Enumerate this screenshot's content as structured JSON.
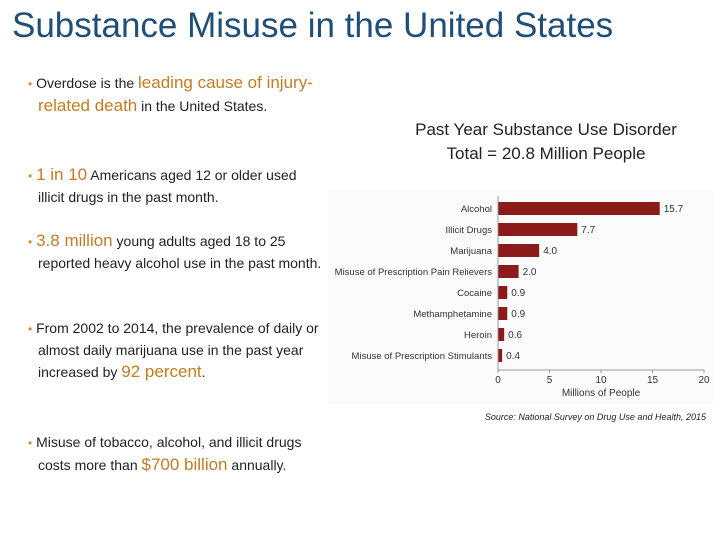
{
  "slide": {
    "title": "Substance Misuse in the United States"
  },
  "bullets": [
    {
      "pre": "Overdose is the ",
      "highlight": "leading cause of injury-related death",
      "post": " in the United States."
    },
    {
      "pre": "",
      "highlight": "1 in 10",
      "post": " Americans aged 12 or older used illicit drugs in the past month."
    },
    {
      "pre": "",
      "highlight": "3.8 million",
      "post": " young adults aged 18 to 25 reported heavy alcohol use in the past month."
    },
    {
      "pre": "From 2002 to 2014, the prevalence of daily or almost daily marijuana use in the past year increased by ",
      "highlight": "92 percent",
      "post": "."
    },
    {
      "pre": "Misuse of tobacco, alcohol, and illicit drugs costs more than ",
      "highlight": "$700 billion",
      "post": " annually."
    }
  ],
  "chart_heading": {
    "line1": "Past Year Substance Use Disorder",
    "line2": "Total = 20.8 Million People"
  },
  "chart_data": {
    "type": "bar",
    "orientation": "horizontal",
    "categories": [
      "Alcohol",
      "Illicit Drugs",
      "Marijuana",
      "Misuse of Prescription Pain Relievers",
      "Cocaine",
      "Methamphetamine",
      "Heroin",
      "Misuse of Prescription Stimulants"
    ],
    "values": [
      15.7,
      7.7,
      4.0,
      2.0,
      0.9,
      0.9,
      0.6,
      0.4
    ],
    "value_labels": [
      "15.7",
      "7.7",
      "4.0",
      "2.0",
      "0.9",
      "0.9",
      "0.6",
      "0.4"
    ],
    "xlabel": "Millions of People",
    "xlim": [
      0,
      20
    ],
    "xticks": [
      "0",
      "5",
      "10",
      "15",
      "20"
    ],
    "bar_color": "#8b1a1a"
  },
  "source": "Source: National Survey on Drug Use and Health, 2015"
}
